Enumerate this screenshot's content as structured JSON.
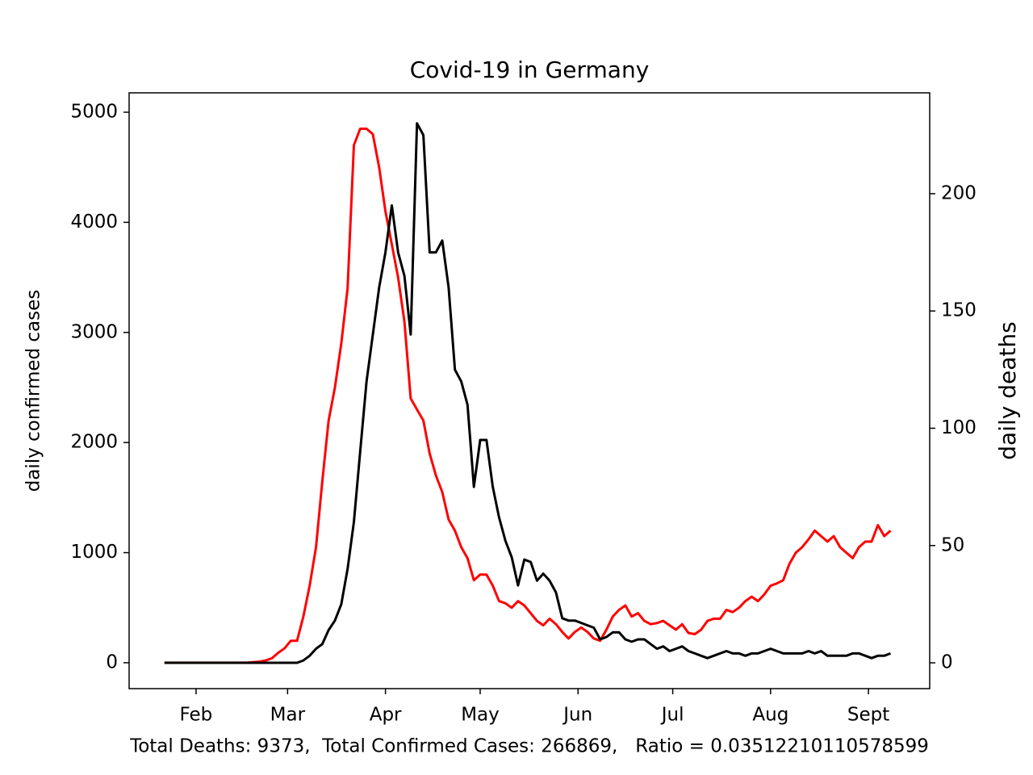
{
  "chart_data": {
    "type": "line",
    "title": "Covid-19 in Germany",
    "annotation": "Total Deaths: 9373,  Total Confirmed Cases: 266869,   Ratio = 0.03512210110578599",
    "ylabel": "daily confirmed cases",
    "y2label": "daily deaths",
    "ylabel_color": "#d62728",
    "x": [
      21,
      23,
      25,
      27,
      29,
      31,
      33,
      35,
      37,
      39,
      41,
      43,
      45,
      47,
      49,
      51,
      53,
      55,
      57,
      59,
      61,
      63,
      65,
      67,
      69,
      71,
      73,
      75,
      77,
      79,
      81,
      83,
      85,
      87,
      89,
      91,
      93,
      95,
      97,
      99,
      101,
      103,
      105,
      107,
      109,
      111,
      113,
      115,
      117,
      119,
      121,
      123,
      125,
      127,
      129,
      131,
      133,
      135,
      137,
      139,
      141,
      143,
      145,
      147,
      149,
      151,
      153,
      155,
      157,
      159,
      161,
      163,
      165,
      167,
      169,
      171,
      173,
      175,
      177,
      179,
      181,
      183,
      185,
      187,
      189,
      191,
      193,
      195,
      197,
      199,
      201,
      203,
      205,
      207,
      209,
      211,
      213,
      215,
      217,
      219,
      221,
      223,
      225,
      227,
      229,
      231,
      233,
      235,
      237,
      239,
      241,
      243,
      245,
      247,
      249,
      251
    ],
    "xlim": [
      9.8,
      263.4
    ],
    "xticks": [
      {
        "value": 31,
        "label": "Feb"
      },
      {
        "value": 60,
        "label": "Mar"
      },
      {
        "value": 91,
        "label": "Apr"
      },
      {
        "value": 121,
        "label": "May"
      },
      {
        "value": 152,
        "label": "Jun"
      },
      {
        "value": 182,
        "label": "Jul"
      },
      {
        "value": 213,
        "label": "Aug"
      },
      {
        "value": 244,
        "label": "Sept"
      }
    ],
    "ylim": [
      -235,
      5176
    ],
    "yticks": [
      0,
      1000,
      2000,
      3000,
      4000,
      5000
    ],
    "y2lim": [
      -11,
      243
    ],
    "y2ticks": [
      0,
      50,
      100,
      150,
      200
    ],
    "series": [
      {
        "color": "#ff0000",
        "values": [
          0,
          0,
          0,
          0,
          0,
          0,
          0,
          0,
          0,
          0,
          0,
          0,
          0,
          0,
          5,
          10,
          20,
          40,
          90,
          130,
          200,
          200,
          420,
          700,
          1050,
          1650,
          2200,
          2500,
          2900,
          3400,
          4700,
          4850,
          4850,
          4800,
          4500,
          4100,
          3800,
          3500,
          3100,
          2400,
          2300,
          2200,
          1900,
          1700,
          1550,
          1300,
          1200,
          1050,
          950,
          750,
          800,
          800,
          700,
          560,
          540,
          500,
          560,
          520,
          450,
          380,
          340,
          400,
          350,
          280,
          220,
          280,
          320,
          280,
          220,
          200,
          300,
          420,
          480,
          520,
          420,
          450,
          380,
          350,
          360,
          380,
          340,
          300,
          350,
          270,
          260,
          300,
          380,
          400,
          400,
          480,
          460,
          500,
          560,
          600,
          560,
          620,
          700,
          720,
          750,
          900,
          1000,
          1050,
          1120,
          1200,
          1150,
          1100,
          1150,
          1050,
          1000,
          950,
          1050,
          1100,
          1100,
          1250,
          1150,
          1200
        ]
      },
      {
        "color": "#000000",
        "axis": "y2",
        "values": [
          0,
          0,
          0,
          0,
          0,
          0,
          0,
          0,
          0,
          0,
          0,
          0,
          0,
          0,
          0,
          0,
          0,
          0,
          0,
          0,
          0,
          0,
          1,
          3,
          6,
          8,
          14,
          18,
          25,
          40,
          60,
          90,
          120,
          140,
          160,
          175,
          195,
          175,
          165,
          140,
          230,
          225,
          175,
          175,
          180,
          160,
          125,
          120,
          110,
          75,
          95,
          95,
          75,
          62,
          52,
          45,
          33,
          44,
          43,
          35,
          38,
          35,
          30,
          19,
          18,
          18,
          17,
          16,
          15,
          10,
          11,
          13,
          13,
          10,
          9,
          10,
          10,
          8,
          6,
          7,
          5,
          6,
          7,
          5,
          4,
          3,
          2,
          3,
          4,
          5,
          4,
          4,
          3,
          4,
          4,
          5,
          6,
          5,
          4,
          4,
          4,
          4,
          5,
          4,
          5,
          3,
          3,
          3,
          3,
          4,
          4,
          3,
          2,
          3,
          3,
          4
        ]
      }
    ]
  }
}
